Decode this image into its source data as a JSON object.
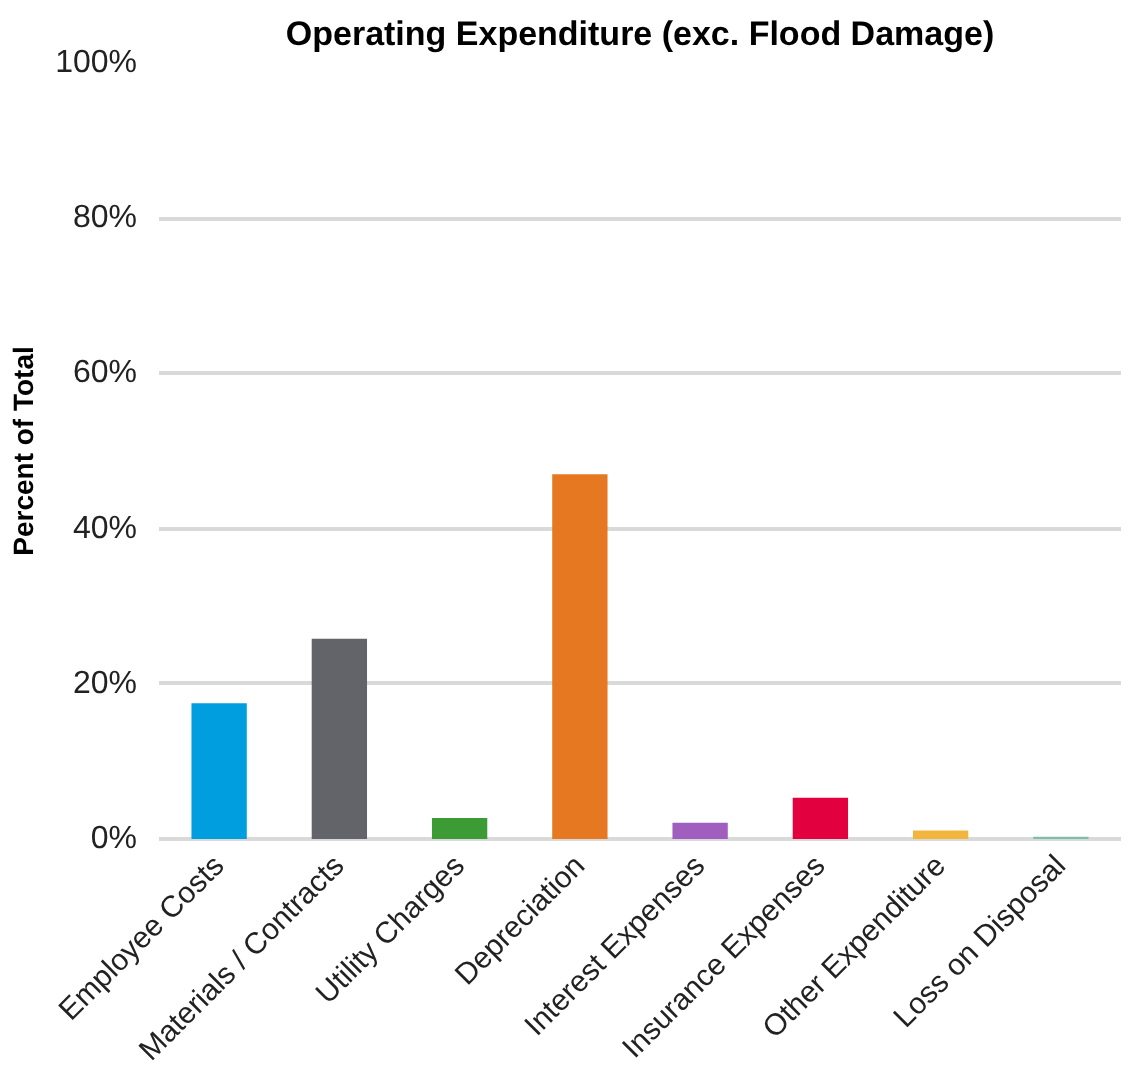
{
  "chart_data": {
    "type": "bar",
    "title": "Operating Expenditure (exc. Flood Damage)",
    "ylabel": "Percent of Total",
    "categories": [
      "Employee Costs",
      "Materials / Contracts",
      "Utility Charges",
      "Depreciation",
      "Interest Expenses",
      "Insurance Expenses",
      "Other Expenditure",
      "Loss on Disposal"
    ],
    "values": [
      17.5,
      25.8,
      2.7,
      47.0,
      2.1,
      5.3,
      1.1,
      0.3
    ],
    "colors": [
      "#009ddf",
      "#626469",
      "#3d9b35",
      "#e67821",
      "#a05ebf",
      "#e2003f",
      "#f2b53e",
      "#7fbfaa"
    ],
    "ylim": [
      0,
      100
    ],
    "yticks": [
      {
        "value": 0,
        "label": "0%"
      },
      {
        "value": 20,
        "label": "20%"
      },
      {
        "value": 40,
        "label": "40%"
      },
      {
        "value": 60,
        "label": "60%"
      },
      {
        "value": 80,
        "label": "80%"
      },
      {
        "value": 100,
        "label": "100%"
      }
    ],
    "grid": "y"
  }
}
